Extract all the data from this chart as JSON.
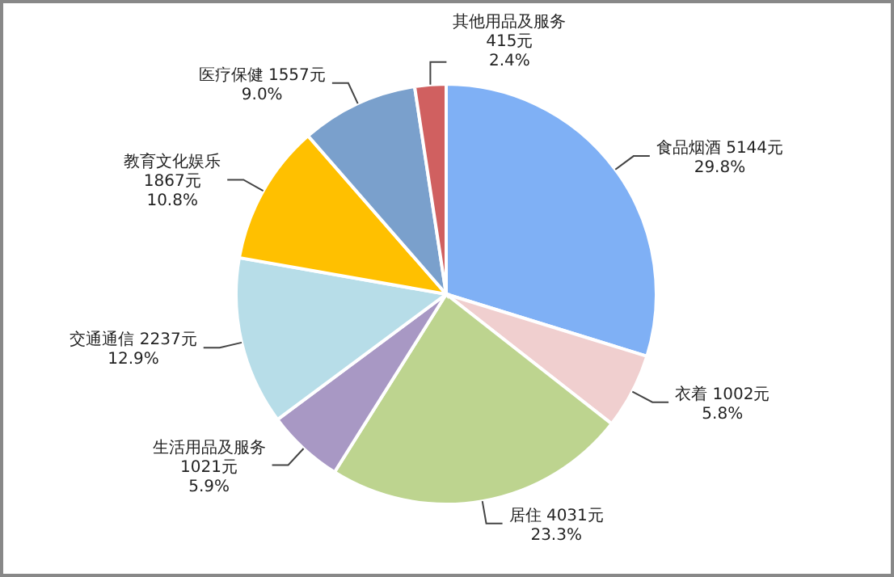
{
  "chart_data": {
    "type": "pie",
    "categories": [
      "食品烟酒",
      "衣着",
      "居住",
      "生活用品及服务",
      "交通通信",
      "教育文化娱乐",
      "医疗保健",
      "其他用品及服务"
    ],
    "values": [
      5144,
      1002,
      4031,
      1021,
      2237,
      1867,
      1557,
      415
    ],
    "value_labels": [
      "5144元\n29.8%",
      "1002元\n5.8%",
      "4031元\n23.3%",
      "1021元\n5.9%",
      "2237元\n12.9%",
      "1867元\n10.8%",
      "1557元\n9.0%",
      "415元\n2.4%"
    ],
    "colors": [
      "#7fb0f5",
      "#f0cfcf",
      "#bdd48f",
      "#a898c4",
      "#b7dde8",
      "#ffc000",
      "#7aa0cc",
      "#d06060"
    ]
  }
}
